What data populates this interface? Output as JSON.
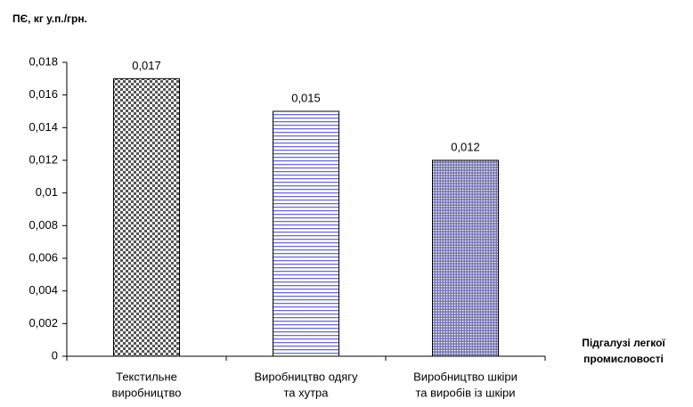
{
  "chart_data": {
    "type": "bar",
    "ylabel": "ПЄ, кг у.п./грн.",
    "xlabel": [
      "Підгалузі легкої",
      "промисловості"
    ],
    "categories": [
      [
        "Текстильне",
        "виробництво"
      ],
      [
        "Виробництво одягу",
        "та хутра"
      ],
      [
        "Виробництво шкіри",
        "та виробів із шкіри"
      ]
    ],
    "values": [
      0.017,
      0.015,
      0.012
    ],
    "value_labels": [
      "0,017",
      "0,015",
      "0,012"
    ],
    "colors": [
      "#555555",
      "#6b6bd6",
      "#7a7ab4"
    ],
    "ylim": [
      0,
      0.018
    ],
    "yticks": [
      0,
      {
        "value": 0.002,
        "label": "0,002"
      },
      {
        "value": 0.004,
        "label": "0,004"
      },
      {
        "value": 0.006,
        "label": "0,006"
      },
      {
        "value": 0.008,
        "label": "0,008"
      },
      {
        "value": 0.01,
        "label": "0,01"
      },
      {
        "value": 0.012,
        "label": "0,012"
      },
      {
        "value": 0.014,
        "label": "0,014"
      },
      {
        "value": 0.016,
        "label": "0,016"
      },
      {
        "value": 0.018,
        "label": "0,018"
      }
    ],
    "grid": false
  }
}
